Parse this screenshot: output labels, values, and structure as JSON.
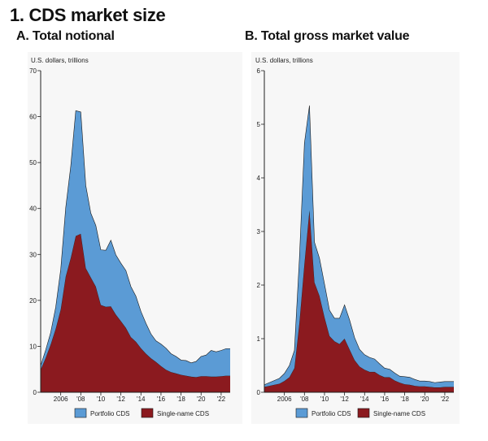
{
  "title": "1. CDS market size",
  "colors": {
    "portfolio": "#5b9bd5",
    "single_name": "#8b1a1f",
    "outline": "#1a1a1a"
  },
  "legend": {
    "portfolio": "Portfolio CDS",
    "single_name": "Single-name CDS"
  },
  "chart_data": [
    {
      "type": "area",
      "stacked": true,
      "title": "A. Total notional",
      "ylabel": "U.S. dollars, trillions",
      "xlabel": "",
      "xlim": [
        2004.0,
        2022.9
      ],
      "ylim": [
        0,
        70
      ],
      "yticks": [
        0,
        10,
        20,
        30,
        40,
        50,
        60,
        70
      ],
      "xticks": [
        {
          "value": 2006,
          "label": "2006"
        },
        {
          "value": 2008,
          "label": "'08"
        },
        {
          "value": 2010,
          "label": "'10"
        },
        {
          "value": 2012,
          "label": "'12"
        },
        {
          "value": 2014,
          "label": "'14"
        },
        {
          "value": 2016,
          "label": "'16"
        },
        {
          "value": 2018,
          "label": "'18"
        },
        {
          "value": 2020,
          "label": "'20"
        },
        {
          "value": 2022,
          "label": "'22"
        }
      ],
      "x": [
        2004.0,
        2004.5,
        2005.0,
        2005.5,
        2006.0,
        2006.5,
        2007.0,
        2007.5,
        2008.0,
        2008.5,
        2009.0,
        2009.5,
        2010.0,
        2010.5,
        2011.0,
        2011.5,
        2012.0,
        2012.5,
        2013.0,
        2013.5,
        2014.0,
        2014.5,
        2015.0,
        2015.5,
        2016.0,
        2016.5,
        2017.0,
        2017.5,
        2018.0,
        2018.5,
        2019.0,
        2019.5,
        2020.0,
        2020.5,
        2021.0,
        2021.5,
        2022.0,
        2022.5,
        2022.9
      ],
      "series": [
        {
          "name": "Single-name CDS",
          "key": "single_name",
          "values": [
            4.9,
            7.5,
            10.4,
            13.8,
            18.0,
            25.2,
            29.2,
            34.0,
            34.5,
            27.0,
            25.0,
            23.0,
            19.0,
            18.6,
            18.7,
            16.9,
            15.5,
            14.0,
            12.0,
            11.0,
            9.6,
            8.4,
            7.4,
            6.6,
            5.7,
            4.9,
            4.4,
            4.1,
            3.8,
            3.6,
            3.4,
            3.3,
            3.5,
            3.5,
            3.4,
            3.4,
            3.5,
            3.6,
            3.6
          ]
        },
        {
          "name": "Portfolio CDS",
          "key": "portfolio",
          "values": [
            0.9,
            1.7,
            2.6,
            4.7,
            8.7,
            15.0,
            20.0,
            27.3,
            26.5,
            18.0,
            14.0,
            13.3,
            12.0,
            12.3,
            14.4,
            13.0,
            12.6,
            12.5,
            11.0,
            9.9,
            8.0,
            6.6,
            5.3,
            4.6,
            4.8,
            4.7,
            4.0,
            3.7,
            3.2,
            3.3,
            3.0,
            3.4,
            4.3,
            4.6,
            5.7,
            5.4,
            5.6,
            5.9,
            5.9
          ]
        }
      ]
    },
    {
      "type": "area",
      "stacked": true,
      "title": "B. Total gross market value",
      "ylabel": "U.S. dollars, trillions",
      "xlabel": "",
      "xlim": [
        2004.0,
        2022.9
      ],
      "ylim": [
        0,
        6
      ],
      "yticks": [
        0,
        1,
        2,
        3,
        4,
        5,
        6
      ],
      "xticks": [
        {
          "value": 2006,
          "label": "2006"
        },
        {
          "value": 2008,
          "label": "'08"
        },
        {
          "value": 2010,
          "label": "'10"
        },
        {
          "value": 2012,
          "label": "'12"
        },
        {
          "value": 2014,
          "label": "'14"
        },
        {
          "value": 2016,
          "label": "'16"
        },
        {
          "value": 2018,
          "label": "'18"
        },
        {
          "value": 2020,
          "label": "'20"
        },
        {
          "value": 2022,
          "label": "'22"
        }
      ],
      "x": [
        2004.0,
        2004.5,
        2005.0,
        2005.5,
        2006.0,
        2006.5,
        2007.0,
        2007.5,
        2008.0,
        2008.5,
        2009.0,
        2009.5,
        2010.0,
        2010.5,
        2011.0,
        2011.5,
        2012.0,
        2012.5,
        2013.0,
        2013.5,
        2014.0,
        2014.5,
        2015.0,
        2015.5,
        2016.0,
        2016.5,
        2017.0,
        2017.5,
        2018.0,
        2018.5,
        2019.0,
        2019.5,
        2020.0,
        2020.5,
        2021.0,
        2021.5,
        2022.0,
        2022.5,
        2022.9
      ],
      "series": [
        {
          "name": "Single-name CDS",
          "key": "single_name",
          "values": [
            0.1,
            0.12,
            0.14,
            0.16,
            0.21,
            0.28,
            0.45,
            1.3,
            2.4,
            3.4,
            2.05,
            1.8,
            1.4,
            1.05,
            0.95,
            0.9,
            1.0,
            0.8,
            0.6,
            0.48,
            0.42,
            0.38,
            0.38,
            0.32,
            0.28,
            0.28,
            0.22,
            0.18,
            0.15,
            0.14,
            0.12,
            0.11,
            0.11,
            0.1,
            0.09,
            0.09,
            0.1,
            0.1,
            0.1
          ]
        },
        {
          "name": "Portfolio CDS",
          "key": "portfolio",
          "values": [
            0.04,
            0.06,
            0.08,
            0.1,
            0.14,
            0.22,
            0.33,
            1.2,
            2.25,
            1.95,
            0.75,
            0.7,
            0.62,
            0.48,
            0.43,
            0.48,
            0.63,
            0.55,
            0.42,
            0.32,
            0.28,
            0.27,
            0.24,
            0.21,
            0.17,
            0.15,
            0.14,
            0.12,
            0.14,
            0.14,
            0.12,
            0.1,
            0.1,
            0.1,
            0.09,
            0.1,
            0.1,
            0.1,
            0.1
          ]
        }
      ]
    }
  ]
}
